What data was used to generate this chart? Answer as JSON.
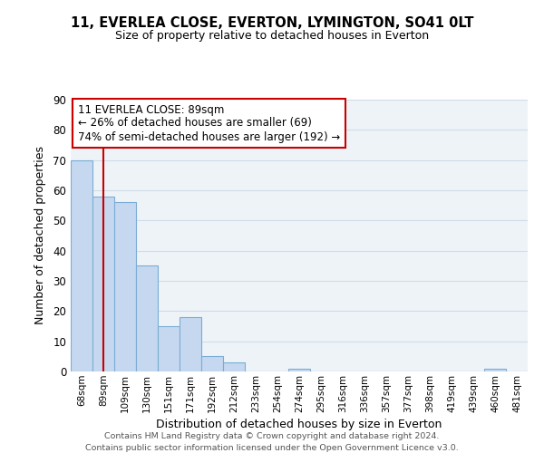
{
  "title": "11, EVERLEA CLOSE, EVERTON, LYMINGTON, SO41 0LT",
  "subtitle": "Size of property relative to detached houses in Everton",
  "xlabel": "Distribution of detached houses by size in Everton",
  "ylabel": "Number of detached properties",
  "categories": [
    "68sqm",
    "89sqm",
    "109sqm",
    "130sqm",
    "151sqm",
    "171sqm",
    "192sqm",
    "212sqm",
    "233sqm",
    "254sqm",
    "274sqm",
    "295sqm",
    "316sqm",
    "336sqm",
    "357sqm",
    "377sqm",
    "398sqm",
    "419sqm",
    "439sqm",
    "460sqm",
    "481sqm"
  ],
  "values": [
    70,
    58,
    56,
    35,
    15,
    18,
    5,
    3,
    0,
    0,
    1,
    0,
    0,
    0,
    0,
    0,
    0,
    0,
    0,
    1,
    0
  ],
  "bar_color": "#c5d8f0",
  "bar_edge_color": "#7aadd4",
  "grid_color": "#d0dce8",
  "bg_color": "#eef3f8",
  "vline_x_index": 1,
  "vline_color": "#cc0000",
  "annotation_title": "11 EVERLEA CLOSE: 89sqm",
  "annotation_line1": "← 26% of detached houses are smaller (69)",
  "annotation_line2": "74% of semi-detached houses are larger (192) →",
  "annotation_box_color": "#ffffff",
  "annotation_box_edge_color": "#cc0000",
  "ylim": [
    0,
    90
  ],
  "yticks": [
    0,
    10,
    20,
    30,
    40,
    50,
    60,
    70,
    80,
    90
  ],
  "footer1": "Contains HM Land Registry data © Crown copyright and database right 2024.",
  "footer2": "Contains public sector information licensed under the Open Government Licence v3.0."
}
